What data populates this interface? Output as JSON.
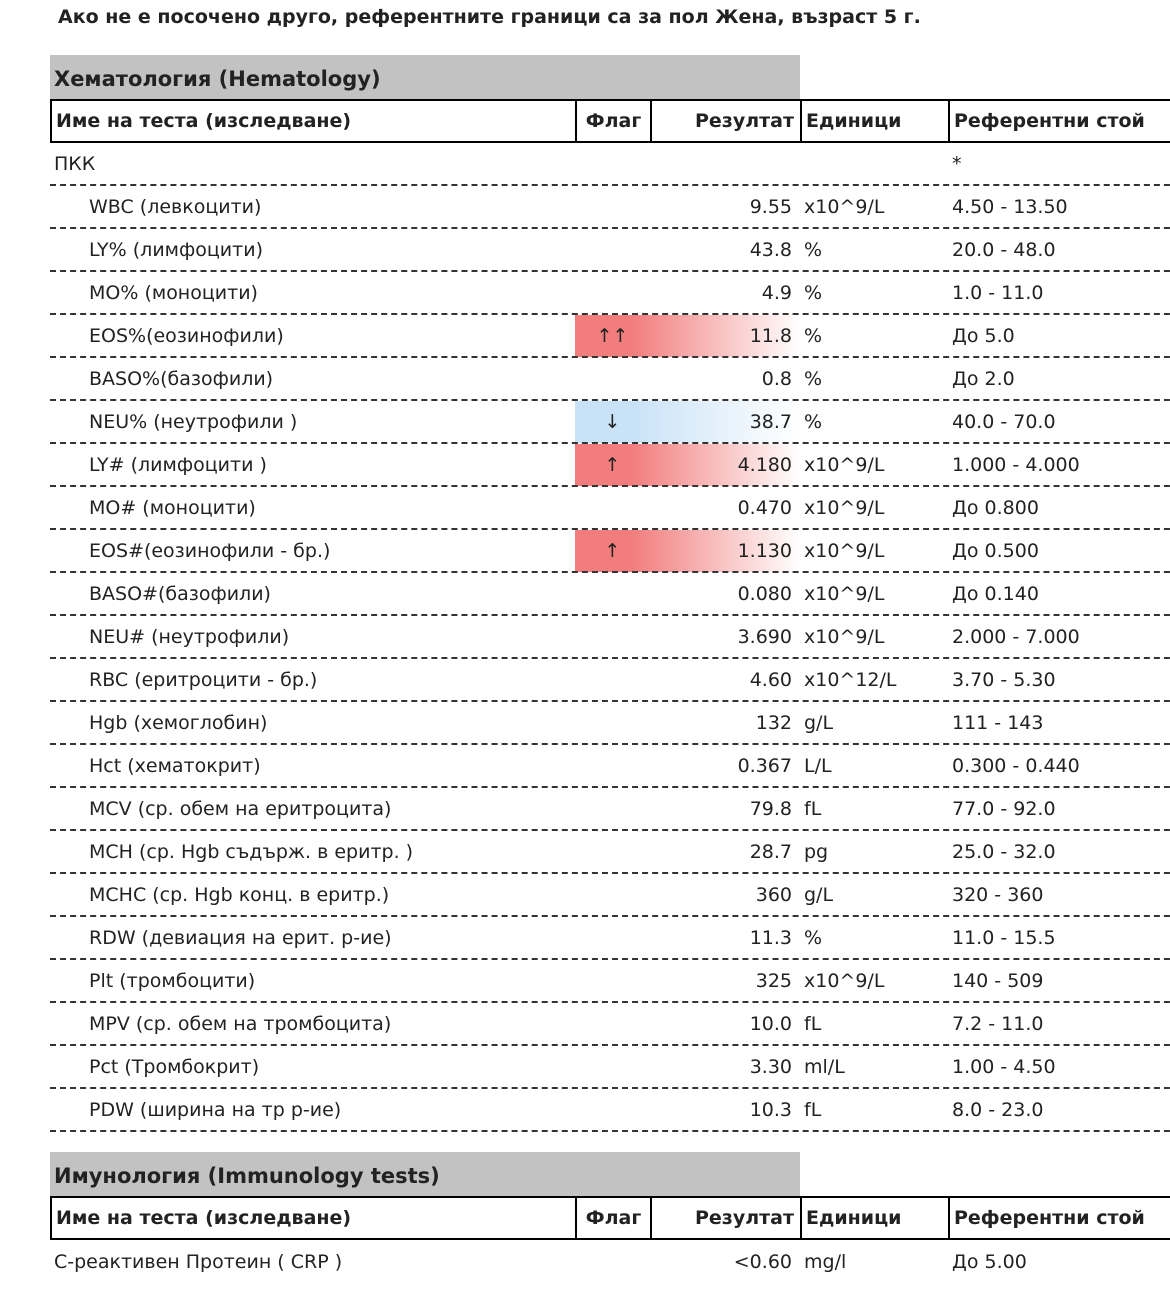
{
  "note": "Ако не е посочено друго, референтните граници са за пол Жена, възраст 5 г.",
  "columns": {
    "name": "Име на теста (изследване)",
    "flag": "Флаг",
    "result": "Резултат",
    "units": "Единици",
    "ref": "Референтни стой"
  },
  "sections": [
    {
      "title": "Хематология (Hematology)",
      "groups": [
        {
          "name": "ПКК",
          "ref": "*",
          "rows": [
            {
              "name": "WBC (левкоцити)",
              "flag": "",
              "result": "9.55",
              "units": "x10^9/L",
              "ref": "4.50 - 13.50"
            },
            {
              "name": "LY% (лимфоцити)",
              "flag": "",
              "result": "43.8",
              "units": "%",
              "ref": "20.0 - 48.0"
            },
            {
              "name": "MO% (моноцити)",
              "flag": "",
              "result": "4.9",
              "units": "%",
              "ref": "1.0 - 11.0"
            },
            {
              "name": "EOS%(еозинофили)",
              "flag": "↑↑",
              "result": "11.8",
              "units": "%",
              "ref": "До 5.0"
            },
            {
              "name": "BASO%(базофили)",
              "flag": "",
              "result": "0.8",
              "units": "%",
              "ref": "До 2.0"
            },
            {
              "name": "NEU% (неутрофили )",
              "flag": "↓",
              "result": "38.7",
              "units": "%",
              "ref": "40.0 - 70.0"
            },
            {
              "name": "LY# (лимфоцити )",
              "flag": "↑",
              "result": "4.180",
              "units": "x10^9/L",
              "ref": "1.000 - 4.000"
            },
            {
              "name": "MO# (моноцити)",
              "flag": "",
              "result": "0.470",
              "units": "x10^9/L",
              "ref": "До 0.800"
            },
            {
              "name": "EOS#(еозинофили - бр.)",
              "flag": "↑",
              "result": "1.130",
              "units": "x10^9/L",
              "ref": "До 0.500"
            },
            {
              "name": "BASO#(базофили)",
              "flag": "",
              "result": "0.080",
              "units": "x10^9/L",
              "ref": "До 0.140"
            },
            {
              "name": "NEU# (неутрофили)",
              "flag": "",
              "result": "3.690",
              "units": "x10^9/L",
              "ref": "2.000 - 7.000"
            },
            {
              "name": "RBC (еритроцити - бр.)",
              "flag": "",
              "result": "4.60",
              "units": "x10^12/L",
              "ref": "3.70 - 5.30"
            },
            {
              "name": "Hgb (хемоглобин)",
              "flag": "",
              "result": "132",
              "units": "g/L",
              "ref": "111 - 143"
            },
            {
              "name": "Hct (хематокрит)",
              "flag": "",
              "result": "0.367",
              "units": "L/L",
              "ref": "0.300 - 0.440"
            },
            {
              "name": "MCV (ср. обем на еритроцита)",
              "flag": "",
              "result": "79.8",
              "units": "fL",
              "ref": "77.0 - 92.0"
            },
            {
              "name": "MCH (ср. Hgb съдърж. в еритр. )",
              "flag": "",
              "result": "28.7",
              "units": "pg",
              "ref": "25.0 - 32.0"
            },
            {
              "name": "MCHC (ср. Hgb конц. в еритр.)",
              "flag": "",
              "result": "360",
              "units": "g/L",
              "ref": "320 - 360"
            },
            {
              "name": "RDW (девиация на ерит. р-ие)",
              "flag": "",
              "result": "11.3",
              "units": "%",
              "ref": "11.0 - 15.5"
            },
            {
              "name": "Plt (тромбоцити)",
              "flag": "",
              "result": "325",
              "units": "x10^9/L",
              "ref": "140 - 509"
            },
            {
              "name": "MPV (ср. обем на тромбоцита)",
              "flag": "",
              "result": "10.0",
              "units": "fL",
              "ref": "7.2 - 11.0"
            },
            {
              "name": "Pct (Тромбокрит)",
              "flag": "",
              "result": "3.30",
              "units": "ml/L",
              "ref": "1.00 - 4.50"
            },
            {
              "name": "PDW (ширина на тр р-ие)",
              "flag": "",
              "result": "10.3",
              "units": "fL",
              "ref": "8.0 - 23.0"
            }
          ]
        }
      ]
    },
    {
      "title": "Имунология (Immunology tests)",
      "rows": [
        {
          "name": "С-реактивен Протеин ( CRP )",
          "flag": "",
          "result": "<0.60",
          "units": "mg/l",
          "ref": "До 5.00"
        }
      ]
    }
  ]
}
